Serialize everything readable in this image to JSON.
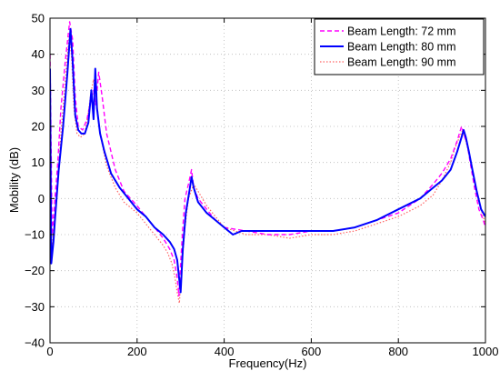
{
  "chart_data": {
    "type": "line",
    "xlabel": "Frequency(Hz)",
    "ylabel": "Mobility (dB)",
    "xlim": [
      0,
      1000
    ],
    "ylim": [
      -40,
      50
    ],
    "xticks": [
      "0",
      "200",
      "400",
      "600",
      "800",
      "1000"
    ],
    "yticks": [
      "−40",
      "−30",
      "−20",
      "−10",
      "0",
      "10",
      "20",
      "30",
      "40",
      "50"
    ],
    "grid": true,
    "legend_position": "top-right",
    "series": [
      {
        "name": "Beam Length: 72 mm",
        "color": "#ff00ff",
        "style": "dashed",
        "x": [
          0,
          5,
          10,
          18,
          25,
          35,
          45,
          52,
          58,
          65,
          75,
          85,
          95,
          100,
          105,
          112,
          120,
          130,
          150,
          170,
          200,
          220,
          240,
          260,
          275,
          285,
          292,
          296,
          300,
          305,
          310,
          318,
          325,
          330,
          340,
          360,
          380,
          400,
          450,
          500,
          550,
          600,
          650,
          700,
          750,
          800,
          850,
          880,
          900,
          920,
          935,
          945,
          950,
          958,
          965,
          975,
          985,
          995,
          1000
        ],
        "y": [
          40,
          -10,
          -2,
          10,
          25,
          38,
          49,
          44,
          28,
          20,
          19,
          22,
          28,
          30,
          26,
          35,
          28,
          18,
          8,
          2,
          -2,
          -5,
          -8,
          -11,
          -14,
          -17,
          -22,
          -27,
          -18,
          -8,
          0,
          4,
          8,
          3,
          0,
          -3,
          -6,
          -8,
          -9,
          -10,
          -10,
          -9,
          -9,
          -8,
          -6,
          -4,
          0,
          4,
          7,
          11,
          16,
          20,
          18,
          15,
          10,
          3,
          -3,
          -6,
          -8
        ]
      },
      {
        "name": "Beam Length: 80 mm",
        "color": "#0000ff",
        "style": "solid",
        "x": [
          0,
          3,
          8,
          12,
          20,
          30,
          40,
          47,
          52,
          58,
          65,
          72,
          80,
          88,
          95,
          100,
          104,
          108,
          115,
          125,
          140,
          160,
          180,
          200,
          220,
          240,
          260,
          275,
          285,
          292,
          300,
          305,
          312,
          320,
          325,
          330,
          340,
          360,
          380,
          400,
          420,
          440,
          500,
          550,
          600,
          650,
          700,
          750,
          800,
          850,
          880,
          900,
          920,
          935,
          945,
          950,
          955,
          962,
          970,
          980,
          990,
          1000
        ],
        "y": [
          36,
          -18,
          -12,
          -5,
          8,
          20,
          35,
          47,
          38,
          23,
          19,
          18,
          18,
          21,
          30,
          22,
          36,
          25,
          18,
          13,
          7,
          3,
          0,
          -3,
          -5,
          -8,
          -10,
          -12,
          -14,
          -17,
          -26,
          -14,
          -4,
          2,
          6,
          3,
          -1,
          -4,
          -6,
          -8,
          -10,
          -9,
          -9,
          -9,
          -9,
          -9,
          -8,
          -6,
          -3,
          0,
          3,
          5,
          8,
          13,
          17,
          19,
          17,
          13,
          8,
          2,
          -3,
          -5
        ]
      },
      {
        "name": "Beam Length: 90 mm",
        "color": "#ff6464",
        "style": "dotted",
        "x": [
          0,
          5,
          10,
          18,
          25,
          32,
          40,
          45,
          50,
          55,
          62,
          70,
          80,
          88,
          95,
          100,
          108,
          115,
          130,
          150,
          170,
          200,
          220,
          240,
          260,
          270,
          280,
          287,
          292,
          297,
          302,
          310,
          318,
          330,
          345,
          360,
          380,
          400,
          450,
          500,
          550,
          600,
          650,
          700,
          750,
          800,
          850,
          880,
          900,
          920,
          930,
          940,
          948,
          955,
          965,
          975,
          985,
          995,
          1000
        ],
        "y": [
          -10,
          -13,
          -6,
          4,
          18,
          28,
          40,
          46,
          38,
          25,
          18,
          17,
          18,
          24,
          30,
          33,
          26,
          18,
          9,
          3,
          -1,
          -4,
          -7,
          -10,
          -13,
          -15,
          -18,
          -22,
          -26,
          -29,
          -20,
          -8,
          0,
          4,
          1,
          -2,
          -5,
          -8,
          -10,
          -10,
          -11,
          -10,
          -10,
          -9,
          -7,
          -5,
          -2,
          1,
          5,
          10,
          14,
          17,
          19,
          16,
          11,
          5,
          -1,
          -5,
          -7
        ]
      }
    ]
  }
}
